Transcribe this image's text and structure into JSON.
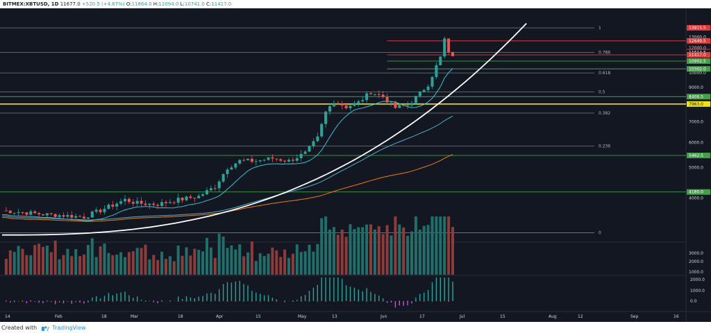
{
  "header": {
    "symbol": "BITMEX:XBTUSD, 1D",
    "last": "11677.0",
    "change": "+520.5 (+4.67%)",
    "o_label": "O:",
    "o": "11864.0",
    "h_label": "H:",
    "h": "12094.0",
    "l_label": "L:",
    "l": "10741.0",
    "c_label": "C:",
    "c": "11417.0"
  },
  "footer": {
    "created_with": "Created with",
    "brand": "TradingView"
  },
  "colors": {
    "background": "#131722",
    "up": "#26a69a",
    "down": "#ef5350",
    "fib_line": "#787b86",
    "trend_curve": "#ffffff",
    "support": "#f2e205",
    "ma_fast": "#2ec4d9",
    "ma_mid": "#4fb0c6",
    "ma_slow": "#f57c00"
  },
  "chart_data": {
    "type": "candlestick",
    "instrument": "BITMEX:XBTUSD",
    "interval": "1D",
    "x_ticks": [
      "14",
      "Feb",
      "18",
      "Mar",
      "18",
      "Apr",
      "15",
      "May",
      "13",
      "Jun",
      "17",
      "Jul",
      "15",
      "Aug",
      "12",
      "Sep",
      "16"
    ],
    "price_ticks": [
      "13000.0",
      "12000.0",
      "11000.0",
      "10000.0",
      "9000.0",
      "8000.0",
      "7000.0",
      "6000.0",
      "5000.0",
      "4000.0"
    ],
    "price_range": [
      3000,
      14500
    ],
    "log_scale": true,
    "fib_levels": [
      {
        "ratio": "1",
        "price": 13915.5
      },
      {
        "ratio": "0.786",
        "price": 11614.5
      },
      {
        "ratio": "0.618",
        "price": 10000
      },
      {
        "ratio": "0.5",
        "price": 8700
      },
      {
        "ratio": "0.382",
        "price": 7450
      },
      {
        "ratio": "0.236",
        "price": 5850
      },
      {
        "ratio": "0",
        "price": 3100
      }
    ],
    "price_tags": [
      {
        "label": "13915.5",
        "price": 13915.5,
        "color": "#e53935"
      },
      {
        "label": "12649.5",
        "price": 12649.5,
        "color": "#e53935"
      },
      {
        "label": "11677.0",
        "price": 11677.0,
        "color": "#e53935"
      },
      {
        "label": "11614.5",
        "price": 11614.5,
        "color": "#131722"
      },
      {
        "label": "11417.0",
        "price": 11417.0,
        "color": "#e53935"
      },
      {
        "label": "10902.5",
        "price": 10902.5,
        "color": "#43a047"
      },
      {
        "label": "10302.0",
        "price": 10302.0,
        "color": "#43a047"
      },
      {
        "label": "8406.5",
        "price": 8406.5,
        "color": "#43a047"
      },
      {
        "label": "7963.0",
        "price": 7963.0,
        "color": "#f2e205"
      },
      {
        "label": "5462.5",
        "price": 5462.5,
        "color": "#43a047"
      },
      {
        "label": "4180.0",
        "price": 4180.0,
        "color": "#43a047"
      }
    ],
    "horizontal_levels": [
      {
        "price": 12649.5,
        "color": "#e53935",
        "from_x": 94
      },
      {
        "price": 11417.0,
        "color": "#e53935",
        "from_x": 94
      },
      {
        "price": 10902.5,
        "color": "#43a047",
        "from_x": 94
      },
      {
        "price": 10302.0,
        "color": "#43a047",
        "from_x": 94
      },
      {
        "price": 8406.5,
        "color": "#43a047",
        "from_x": 0
      },
      {
        "price": 7963.0,
        "color": "#f2e205",
        "from_x": 0
      },
      {
        "price": 5462.5,
        "color": "#43a047",
        "from_x": 0
      },
      {
        "price": 4180.0,
        "color": "#43a047",
        "from_x": 0
      }
    ],
    "price_anchors": [
      [
        0,
        3650
      ],
      [
        5,
        3600
      ],
      [
        10,
        3550
      ],
      [
        15,
        3520
      ],
      [
        20,
        3480
      ],
      [
        25,
        3700
      ],
      [
        30,
        3950
      ],
      [
        33,
        3850
      ],
      [
        38,
        3820
      ],
      [
        43,
        3950
      ],
      [
        48,
        4050
      ],
      [
        52,
        4350
      ],
      [
        55,
        5000
      ],
      [
        58,
        5250
      ],
      [
        62,
        5250
      ],
      [
        66,
        5350
      ],
      [
        70,
        5250
      ],
      [
        74,
        5550
      ],
      [
        77,
        6200
      ],
      [
        79,
        7500
      ],
      [
        81,
        8150
      ],
      [
        84,
        7800
      ],
      [
        87,
        8050
      ],
      [
        90,
        8700
      ],
      [
        93,
        8400
      ],
      [
        96,
        7750
      ],
      [
        99,
        7900
      ],
      [
        102,
        8600
      ],
      [
        104,
        9200
      ],
      [
        106,
        10500
      ],
      [
        107,
        11200
      ],
      [
        108,
        12800
      ],
      [
        109,
        11500
      ],
      [
        110,
        11417
      ]
    ],
    "volume_ticks": [
      "3000.0",
      "2000.0",
      "1000.0"
    ],
    "oscillator_ticks": [
      "2000.0",
      "1000.0",
      "0.0"
    ]
  }
}
